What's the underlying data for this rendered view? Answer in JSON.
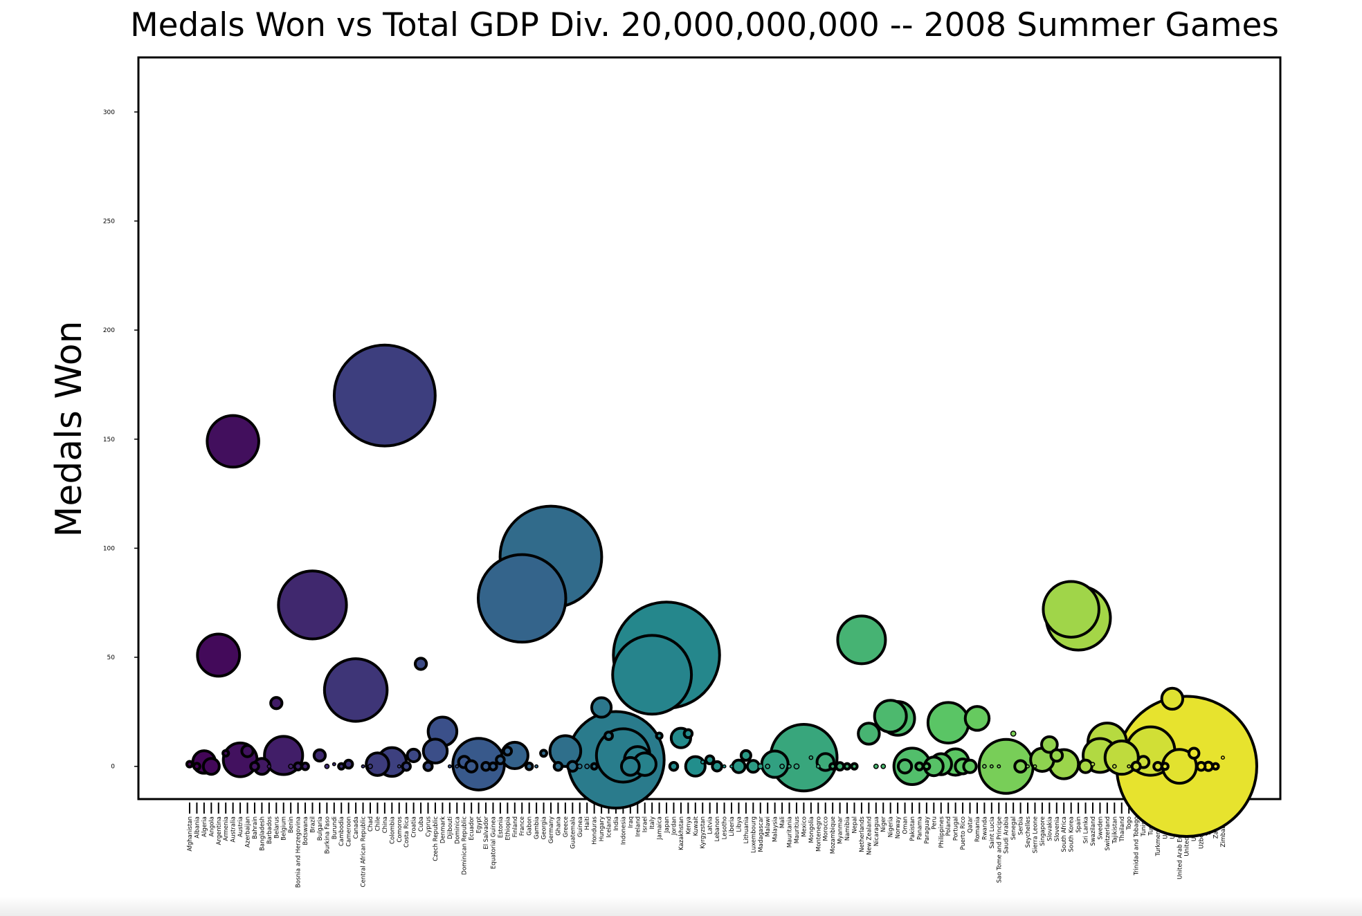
{
  "chart_data": {
    "type": "scatter",
    "title": "Medals Won vs Total GDP Div. 20,000,000,000 -- 2008 Summer Games",
    "xlabel": "",
    "ylabel": "Medals Won",
    "ylim": [
      -15,
      325
    ],
    "yticks": [
      0,
      50,
      100,
      150,
      200,
      250,
      300
    ],
    "grid": false,
    "legend": "none",
    "size_encoding": "Total GDP Div. 20,000,000,000",
    "colormap": "viridis",
    "categories": [
      "Afghanistan",
      "Albania",
      "Algeria",
      "Angola",
      "Argentina",
      "Armenia",
      "Australia",
      "Austria",
      "Azerbaijan",
      "Bahrain",
      "Bangladesh",
      "Barbados",
      "Belarus",
      "Belgium",
      "Benin",
      "Bosnia and Herzegovina",
      "Botswana",
      "Brazil",
      "Bulgaria",
      "Burkina Faso",
      "Burundi",
      "Cambodia",
      "Cameroon",
      "Canada",
      "Central African Republic",
      "Chad",
      "Chile",
      "China",
      "Colombia",
      "Comoros",
      "Costa Rica",
      "Croatia",
      "Cuba",
      "Cyprus",
      "Czech Republic",
      "Denmark",
      "Djibouti",
      "Dominica",
      "Dominican Republic",
      "Ecuador",
      "Egypt",
      "El Salvador",
      "Equatorial Guinea",
      "Estonia",
      "Ethiopia",
      "Finland",
      "France",
      "Gabon",
      "Gambia",
      "Georgia",
      "Germany",
      "Ghana",
      "Greece",
      "Guatemala",
      "Guinea",
      "Haiti",
      "Honduras",
      "Hungary",
      "Iceland",
      "India",
      "Indonesia",
      "Iraq",
      "Ireland",
      "Israel",
      "Italy",
      "Jamaica",
      "Japan",
      "Jordan",
      "Kazakhstan",
      "Kenya",
      "Kuwait",
      "Kyrgyzstan",
      "Latvia",
      "Lebanon",
      "Lesotho",
      "Liberia",
      "Libya",
      "Lithuania",
      "Luxembourg",
      "Madagascar",
      "Malawi",
      "Malaysia",
      "Mali",
      "Mauritania",
      "Mauritius",
      "Mexico",
      "Mongolia",
      "Montenegro",
      "Morocco",
      "Mozambique",
      "Myanmar",
      "Namibia",
      "Nepal",
      "Netherlands",
      "New Zealand",
      "Nicaragua",
      "Niger",
      "Nigeria",
      "Norway",
      "Oman",
      "Pakistan",
      "Panama",
      "Paraguay",
      "Peru",
      "Philippines",
      "Poland",
      "Portugal",
      "Puerto Rico",
      "Qatar",
      "Romania",
      "Rwanda",
      "Saint Lucia",
      "Sao Tome and Principe",
      "Saudi Arabia",
      "Senegal",
      "Serbia",
      "Seychelles",
      "Sierra Leone",
      "Singapore",
      "Slovakia",
      "Slovenia",
      "South Africa",
      "South Korea",
      "Spain",
      "Sri Lanka",
      "Swaziland",
      "Sweden",
      "Switzerland",
      "Tajikistan",
      "Thailand",
      "Togo",
      "Trinidad and Tobago",
      "Tunisia",
      "Turkey",
      "Turkmenistan",
      "Uganda",
      "Ukraine",
      "United Arab Emirates",
      "United States",
      "Uruguay",
      "Uzbekistan",
      "Yemen",
      "Zambia",
      "Zimbabwe"
    ],
    "medals": [
      1,
      0,
      2,
      0,
      51,
      6,
      149,
      3,
      7,
      0,
      0,
      0,
      29,
      5,
      0,
      0,
      0,
      74,
      5,
      0,
      1,
      0,
      1,
      35,
      0,
      0,
      1,
      170,
      2,
      0,
      0,
      5,
      47,
      0,
      7,
      16,
      0,
      0,
      2,
      0,
      1,
      0,
      0,
      3,
      7,
      5,
      77,
      0,
      0,
      6,
      96,
      0,
      7,
      0,
      0,
      0,
      0,
      27,
      14,
      3,
      5,
      0,
      3,
      1,
      42,
      14,
      51,
      0,
      13,
      15,
      0,
      2,
      3,
      0,
      0,
      0,
      0,
      5,
      0,
      0,
      0,
      1,
      0,
      0,
      0,
      4,
      4,
      0,
      2,
      0,
      0,
      0,
      0,
      58,
      15,
      0,
      0,
      23,
      22,
      0,
      0,
      0,
      0,
      0,
      1,
      20,
      2,
      0,
      0,
      22,
      0,
      0,
      0,
      0,
      15,
      0,
      0,
      0,
      3,
      10,
      5,
      1,
      72,
      68,
      0,
      1,
      5,
      11,
      0,
      4,
      0,
      0,
      2,
      7,
      0,
      0,
      31,
      0,
      0,
      6,
      0,
      0,
      0,
      4
    ],
    "gdp_scaled": [
      0.5,
      0.6,
      8,
      4,
      28,
      0.5,
      42,
      18,
      2,
      1,
      4,
      0.2,
      2,
      23,
      0.3,
      0.8,
      0.7,
      73,
      2,
      0.3,
      0.1,
      0.5,
      1,
      62,
      0.1,
      0.3,
      8,
      161,
      13,
      0.05,
      1,
      2.5,
      2,
      1.1,
      9,
      13,
      0.05,
      0.05,
      2,
      2,
      42,
      1,
      0.8,
      1,
      1,
      11,
      121,
      0.7,
      0.05,
      0.6,
      163,
      1,
      15,
      1.5,
      0.3,
      0.3,
      0.5,
      6,
      0.9,
      147,
      45,
      5,
      11,
      8,
      98,
      0.5,
      178,
      1,
      6,
      1,
      6,
      0.2,
      1,
      1.4,
      0.1,
      0.05,
      2.5,
      1.5,
      2.2,
      0.4,
      0.3,
      11,
      0.3,
      0.2,
      0.4,
      70,
      0.2,
      0.2,
      4.5,
      0.5,
      0.9,
      0.5,
      0.5,
      36,
      7,
      0.3,
      0.3,
      16,
      18,
      2.8,
      21,
      0.8,
      0.6,
      5.5,
      7,
      26,
      11,
      3.5,
      2.5,
      9,
      0.2,
      0.05,
      0.05,
      46,
      0.4,
      2.1,
      0.05,
      0.1,
      8.5,
      3.9,
      2.1,
      13.4,
      49,
      65,
      2.5,
      0.2,
      18,
      23.5,
      0.2,
      17.5,
      0.1,
      1.1,
      2,
      37,
      1,
      0.6,
      7,
      18,
      310,
      1.6,
      1,
      1.1,
      0.5,
      0.1
    ]
  }
}
